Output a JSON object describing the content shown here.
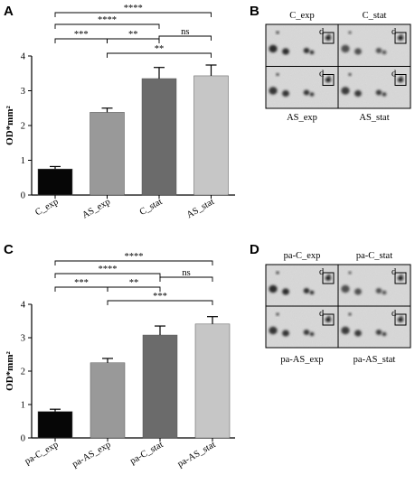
{
  "colors": {
    "ink": "#000000",
    "bar_edge": "#555555"
  },
  "chart_data": [
    {
      "panel": "A",
      "type": "bar",
      "ylabel": "OD*mm²",
      "ylim": [
        0,
        4
      ],
      "yticks": [
        0,
        1,
        2,
        3,
        4
      ],
      "categories": [
        "C_exp",
        "AS_exp",
        "C_stat",
        "AS_stat"
      ],
      "values": [
        0.75,
        2.38,
        3.35,
        3.43
      ],
      "errors": [
        0.07,
        0.12,
        0.32,
        0.31
      ],
      "bar_colors": [
        "#060606",
        "#999999",
        "#6b6b6b",
        "#c6c6c6"
      ],
      "significance": [
        {
          "from": 0,
          "to": 3,
          "label": "****"
        },
        {
          "from": 0,
          "to": 2,
          "label": "****"
        },
        {
          "from": 2,
          "to": 3,
          "label": "ns"
        },
        {
          "from": 0,
          "to": 1,
          "label": "***"
        },
        {
          "from": 1,
          "to": 2,
          "label": "**"
        },
        {
          "from": 1,
          "to": 3,
          "label": "**"
        }
      ]
    },
    {
      "panel": "C",
      "type": "bar",
      "ylabel": "OD*mm²",
      "ylim": [
        0,
        4
      ],
      "yticks": [
        0,
        1,
        2,
        3,
        4
      ],
      "categories": [
        "pa-C_exp",
        "pa-AS_exp",
        "pa-C_stat",
        "pa-AS_stat"
      ],
      "values": [
        0.79,
        2.25,
        3.08,
        3.41
      ],
      "errors": [
        0.07,
        0.13,
        0.27,
        0.22
      ],
      "bar_colors": [
        "#060606",
        "#999999",
        "#6b6b6b",
        "#c6c6c6"
      ],
      "significance": [
        {
          "from": 0,
          "to": 3,
          "label": "****"
        },
        {
          "from": 0,
          "to": 2,
          "label": "****"
        },
        {
          "from": 2,
          "to": 3,
          "label": "ns"
        },
        {
          "from": 0,
          "to": 1,
          "label": "***"
        },
        {
          "from": 1,
          "to": 2,
          "label": "**"
        },
        {
          "from": 1,
          "to": 3,
          "label": "***"
        }
      ]
    }
  ],
  "gels": [
    {
      "panel": "B",
      "labels": [
        "C_exp",
        "C_stat",
        "AS_exp",
        "AS_stat"
      ],
      "spot_label": "d"
    },
    {
      "panel": "D",
      "labels": [
        "pa-C_exp",
        "pa-C_stat",
        "pa-AS_exp",
        "pa-AS_stat"
      ],
      "spot_label": "d"
    }
  ]
}
